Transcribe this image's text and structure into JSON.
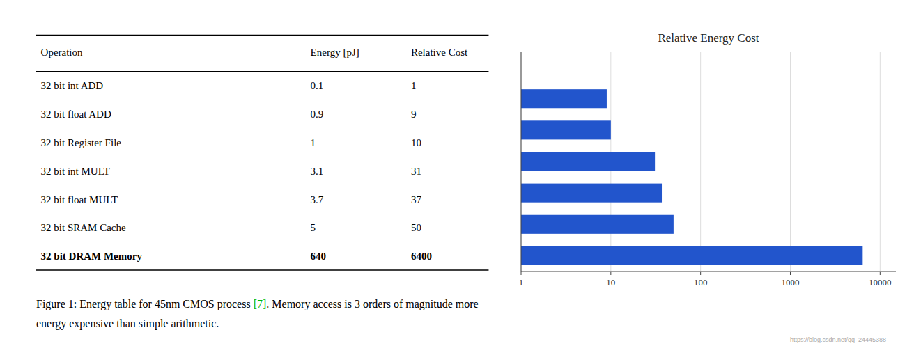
{
  "chart_data": {
    "type": "bar",
    "title": "Relative Energy Cost",
    "orientation": "horizontal",
    "categories": [
      null,
      null,
      null,
      null,
      null,
      null,
      null
    ],
    "values": [
      1,
      9,
      10,
      31,
      37,
      50,
      6400
    ],
    "color": "#2255cc",
    "log": "x",
    "xlim": [
      1,
      15000
    ],
    "xticks": [
      1,
      10,
      100,
      1000,
      10000
    ],
    "grid": true,
    "tick_labels": "x"
  },
  "table": {
    "headers": [
      "Operation",
      "Energy [pJ]",
      "Relative Cost"
    ],
    "rows": [
      [
        "32 bit int ADD",
        "0.1",
        "1"
      ],
      [
        "32 bit float ADD",
        "0.9",
        "9"
      ],
      [
        "32 bit Register File",
        "1",
        "10"
      ],
      [
        "32 bit int MULT",
        "3.1",
        "31"
      ],
      [
        "32 bit float MULT",
        "3.7",
        "37"
      ],
      [
        "32 bit SRAM Cache",
        "5",
        "50"
      ],
      [
        "32 bit DRAM Memory",
        "640",
        "6400"
      ]
    ]
  },
  "caption": {
    "line1": [
      "Figure 1: Energy table for 45nm CMOS process ",
      "[7]",
      ". Memory access is 3 orders of magnitude more"
    ],
    "ref_color": "#00bb00",
    "line2": "energy expensive than simple arithmetic."
  },
  "watermark": "https://blog.csdn.net/qq_24445388"
}
